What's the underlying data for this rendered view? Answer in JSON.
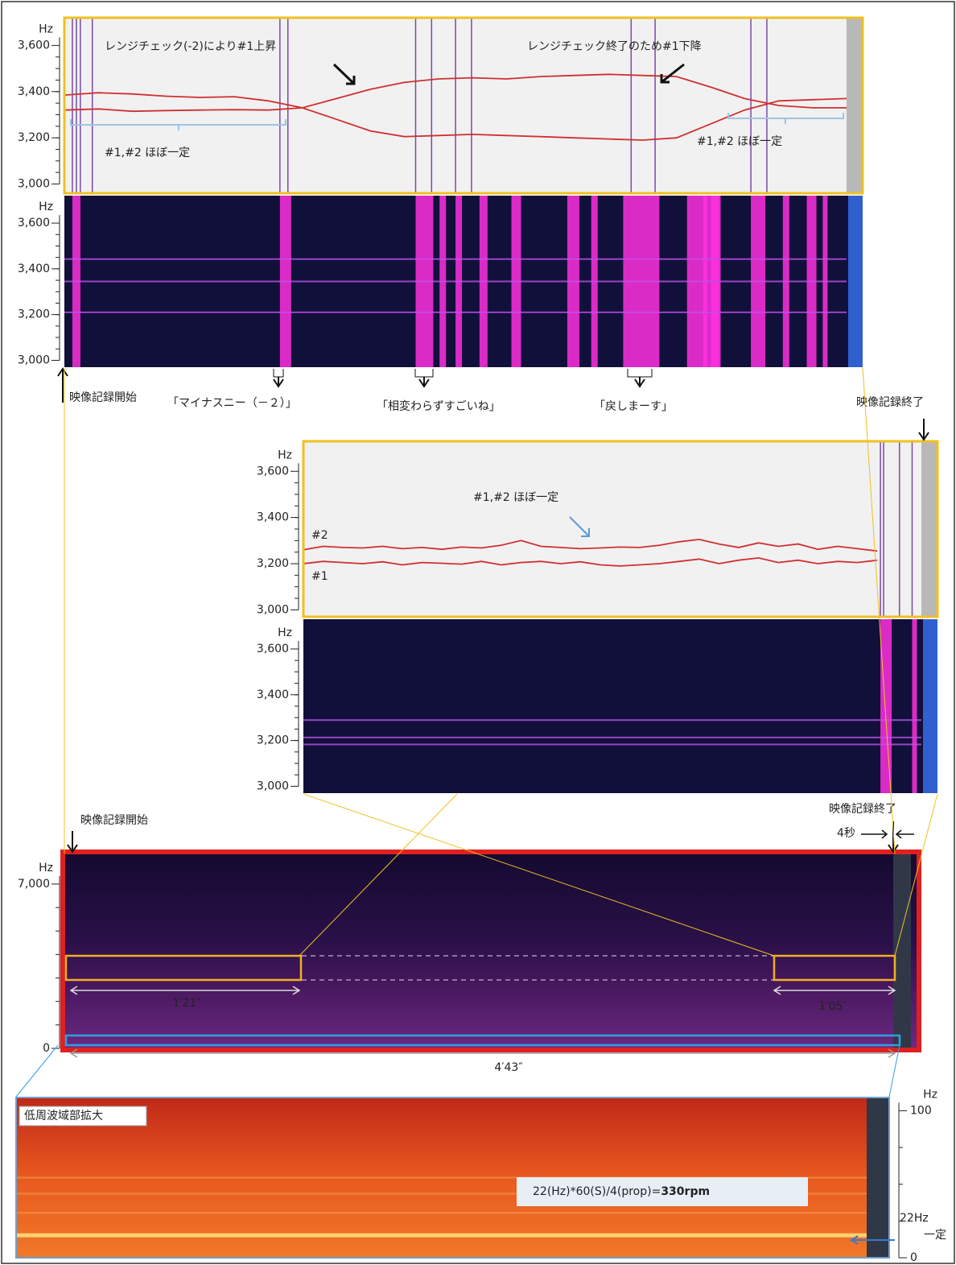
{
  "chart_data": [
    {
      "type": "line",
      "y_unit": "Hz",
      "ylim": [
        2960,
        3720
      ],
      "yticks": [
        {
          "value": 3000,
          "label": "3,000"
        },
        {
          "value": 3200,
          "label": "3,200"
        },
        {
          "value": 3400,
          "label": "3,400"
        },
        {
          "value": 3600,
          "label": "3,600"
        }
      ],
      "series": [
        {
          "color": "#d03030",
          "values": [
            3320,
            3325,
            3315,
            3318,
            3320,
            3322,
            3320,
            3330,
            3370,
            3410,
            3440,
            3455,
            3460,
            3455,
            3465,
            3470,
            3475,
            3470,
            3465,
            3420,
            3370,
            3340,
            3330,
            3330
          ]
        },
        {
          "color": "#d03030",
          "values": [
            3385,
            3395,
            3390,
            3380,
            3375,
            3378,
            3360,
            3330,
            3280,
            3230,
            3205,
            3210,
            3215,
            3210,
            3205,
            3200,
            3195,
            3190,
            3200,
            3260,
            3320,
            3360,
            3365,
            3370
          ]
        }
      ],
      "annotations": [
        {
          "text": "レンジチェック(-2)により#1上昇",
          "color": "#222222"
        },
        {
          "text": "レンジチェック終了のため#1下降",
          "color": "#222222"
        },
        {
          "text": "#1,#2 ほぼ一定",
          "color": "#5b9bd5"
        },
        {
          "text": "#1,#2 ほぼ一定",
          "color": "#5b9bd5"
        }
      ]
    },
    {
      "type": "spectrogram",
      "y_unit": "Hz",
      "ylim": [
        2970,
        3720
      ],
      "yticks": [
        {
          "value": 3000,
          "label": "3,000"
        },
        {
          "value": 3200,
          "label": "3,200"
        },
        {
          "value": 3400,
          "label": "3,400"
        },
        {
          "value": 3600,
          "label": "3,600"
        }
      ],
      "annotations": [
        {
          "text": "映像記録開始",
          "color": "#222222"
        },
        {
          "text": "「マイナスニー（－２）」",
          "color": "#222222"
        },
        {
          "text": "「相変わらずすごいね」",
          "color": "#222222"
        },
        {
          "text": "「戻しまーす」",
          "color": "#222222"
        },
        {
          "text": "映像記録終了",
          "color": "#222222"
        }
      ]
    },
    {
      "type": "line",
      "y_unit": "Hz",
      "ylim": [
        2970,
        3730
      ],
      "yticks": [
        {
          "value": 3000,
          "label": "3,000"
        },
        {
          "value": 3200,
          "label": "3,200"
        },
        {
          "value": 3400,
          "label": "3,400"
        },
        {
          "value": 3600,
          "label": "3,600"
        }
      ],
      "series": [
        {
          "name": "#2",
          "color": "#d03030",
          "values": [
            3260,
            3275,
            3270,
            3268,
            3275,
            3265,
            3270,
            3262,
            3272,
            3268,
            3280,
            3300,
            3275,
            3270,
            3265,
            3268,
            3272,
            3270,
            3280,
            3295,
            3305,
            3285,
            3270,
            3290,
            3275,
            3285,
            3262,
            3275,
            3265,
            3255
          ]
        },
        {
          "name": "#1",
          "color": "#d03030",
          "values": [
            3200,
            3210,
            3205,
            3200,
            3208,
            3195,
            3205,
            3202,
            3198,
            3210,
            3195,
            3205,
            3210,
            3200,
            3208,
            3195,
            3190,
            3195,
            3200,
            3210,
            3220,
            3200,
            3215,
            3225,
            3205,
            3215,
            3200,
            3210,
            3205,
            3215
          ]
        }
      ],
      "annotations": [
        {
          "text": "#1,#2 ほぼ一定",
          "color": "#5b9bd5"
        }
      ]
    },
    {
      "type": "spectrogram",
      "y_unit": "Hz",
      "ylim": [
        2970,
        3730
      ],
      "yticks": [
        {
          "value": 3000,
          "label": "3,000"
        },
        {
          "value": 3200,
          "label": "3,200"
        },
        {
          "value": 3400,
          "label": "3,400"
        },
        {
          "value": 3600,
          "label": "3,600"
        }
      ],
      "annotations": []
    },
    {
      "type": "spectrogram",
      "y_unit": "Hz",
      "ylim": [
        0,
        8300
      ],
      "yticks": [
        0,
        {
          "value": 7000,
          "label": "7,000"
        }
      ],
      "annotations": [
        {
          "text": "映像記録開始",
          "color": "#222222"
        },
        {
          "text": "映像記録終了",
          "color": "#222222"
        },
        {
          "text": "4秒",
          "color": "#222222"
        },
        {
          "text": "1′21″",
          "color": "#dddddd"
        },
        {
          "text": "1′05″",
          "color": "#dddddd"
        },
        {
          "text": "4′43″",
          "color": "#888888"
        }
      ]
    },
    {
      "type": "spectrogram",
      "y_unit": "Hz",
      "ylim": [
        0,
        109
      ],
      "yticks": [
        0,
        100
      ],
      "annotations": [
        {
          "text": "低周波域部拡大",
          "color": "#222222"
        },
        {
          "text": "22(Hz)*60(S)/4(prop)=",
          "color": "#222222"
        },
        {
          "text": "330rpm",
          "color": "#e02020"
        },
        {
          "text": "22Hz",
          "color": "#3a78c8"
        },
        {
          "text": "一定",
          "color": "#3a78c8"
        }
      ]
    }
  ]
}
